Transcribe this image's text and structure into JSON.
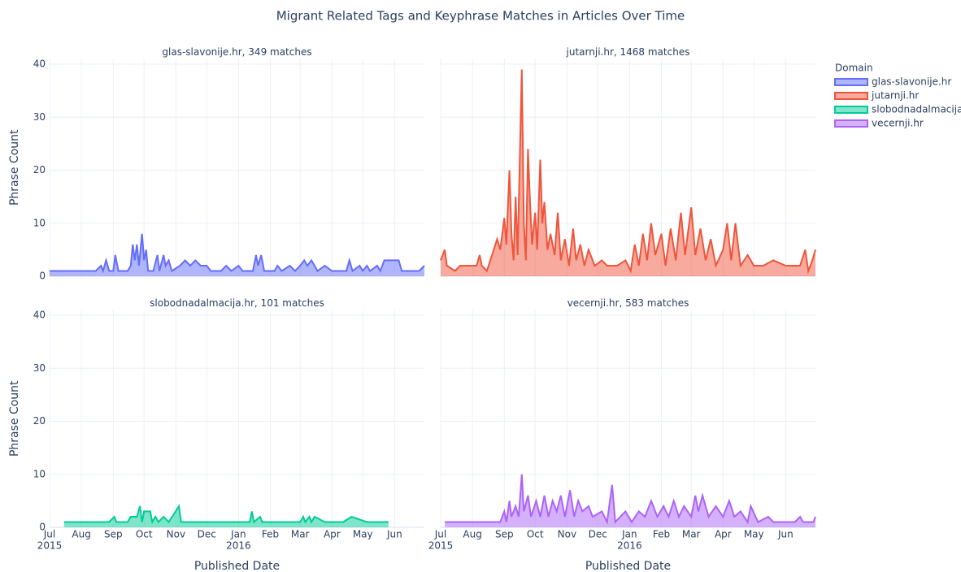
{
  "chart_data": {
    "type": "area",
    "title": "Migrant Related Tags and Keyphrase Matches in Articles Over Time",
    "xlabel": "Published Date",
    "ylabel": "Phrase Count",
    "legend_title": "Domain",
    "ylim": [
      0,
      41
    ],
    "yticks": [
      0,
      10,
      20,
      30,
      40
    ],
    "xlim": [
      "2015-07-01",
      "2016-06-30"
    ],
    "xticks": [
      {
        "value": "2015-07-01",
        "label": "Jul",
        "year": "2015"
      },
      {
        "value": "2015-08-01",
        "label": "Aug"
      },
      {
        "value": "2015-09-01",
        "label": "Sep"
      },
      {
        "value": "2015-10-01",
        "label": "Oct"
      },
      {
        "value": "2015-11-01",
        "label": "Nov"
      },
      {
        "value": "2015-12-01",
        "label": "Dec"
      },
      {
        "value": "2016-01-01",
        "label": "Jan",
        "year": "2016"
      },
      {
        "value": "2016-02-01",
        "label": "Feb"
      },
      {
        "value": "2016-03-01",
        "label": "Mar"
      },
      {
        "value": "2016-04-01",
        "label": "Apr"
      },
      {
        "value": "2016-05-01",
        "label": "May"
      },
      {
        "value": "2016-06-01",
        "label": "Jun"
      }
    ],
    "grid": true,
    "legend": "right",
    "series": [
      {
        "name": "glas-slavonije.hr",
        "subtitle": "glas-slavonije.hr, 349 matches",
        "color": "#636efa",
        "x": [
          "2015-07-01",
          "2015-08-15",
          "2015-08-20",
          "2015-08-22",
          "2015-08-25",
          "2015-08-28",
          "2015-09-01",
          "2015-09-03",
          "2015-09-06",
          "2015-09-15",
          "2015-09-18",
          "2015-09-20",
          "2015-09-22",
          "2015-09-24",
          "2015-09-26",
          "2015-09-29",
          "2015-10-01",
          "2015-10-03",
          "2015-10-05",
          "2015-10-10",
          "2015-10-14",
          "2015-10-16",
          "2015-10-20",
          "2015-10-22",
          "2015-10-25",
          "2015-10-28",
          "2015-11-05",
          "2015-11-10",
          "2015-11-15",
          "2015-11-20",
          "2015-11-25",
          "2015-12-01",
          "2015-12-05",
          "2015-12-15",
          "2015-12-20",
          "2015-12-25",
          "2016-01-01",
          "2016-01-05",
          "2016-01-15",
          "2016-01-18",
          "2016-01-20",
          "2016-01-23",
          "2016-01-26",
          "2016-02-05",
          "2016-02-08",
          "2016-02-12",
          "2016-02-20",
          "2016-02-25",
          "2016-03-01",
          "2016-03-05",
          "2016-03-08",
          "2016-03-12",
          "2016-03-18",
          "2016-03-25",
          "2016-04-01",
          "2016-04-15",
          "2016-04-18",
          "2016-04-21",
          "2016-04-28",
          "2016-05-01",
          "2016-05-05",
          "2016-05-08",
          "2016-05-15",
          "2016-05-18",
          "2016-05-22",
          "2016-06-05",
          "2016-06-08",
          "2016-06-25",
          "2016-06-30"
        ],
        "values": [
          1,
          1,
          2,
          1,
          3,
          1,
          1,
          4,
          1,
          1,
          2,
          6,
          3,
          6,
          2,
          8,
          3,
          5,
          1,
          1,
          4,
          1,
          4,
          2,
          3,
          1,
          2,
          3,
          2,
          3,
          2,
          2,
          1,
          1,
          2,
          1,
          2,
          1,
          1,
          4,
          2,
          4,
          1,
          1,
          2,
          1,
          2,
          1,
          2,
          3,
          2,
          3,
          1,
          2,
          1,
          1,
          3,
          1,
          2,
          1,
          2,
          1,
          2,
          1,
          3,
          3,
          1,
          1,
          2
        ]
      },
      {
        "name": "jutarnji.hr",
        "subtitle": "jutarnji.hr, 1468 matches",
        "color": "#ef553b",
        "x": [
          "2015-07-01",
          "2015-07-05",
          "2015-07-07",
          "2015-07-15",
          "2015-07-20",
          "2015-08-05",
          "2015-08-08",
          "2015-08-10",
          "2015-08-15",
          "2015-08-20",
          "2015-08-25",
          "2015-08-28",
          "2015-09-01",
          "2015-09-03",
          "2015-09-06",
          "2015-09-08",
          "2015-09-10",
          "2015-09-12",
          "2015-09-14",
          "2015-09-18",
          "2015-09-20",
          "2015-09-22",
          "2015-09-24",
          "2015-09-26",
          "2015-09-28",
          "2015-10-01",
          "2015-10-03",
          "2015-10-06",
          "2015-10-08",
          "2015-10-10",
          "2015-10-13",
          "2015-10-16",
          "2015-10-20",
          "2015-10-23",
          "2015-10-26",
          "2015-10-30",
          "2015-11-03",
          "2015-11-07",
          "2015-11-10",
          "2015-11-14",
          "2015-11-18",
          "2015-11-22",
          "2015-11-28",
          "2015-12-05",
          "2015-12-10",
          "2015-12-20",
          "2015-12-28",
          "2016-01-02",
          "2016-01-06",
          "2016-01-10",
          "2016-01-14",
          "2016-01-18",
          "2016-01-22",
          "2016-01-26",
          "2016-02-01",
          "2016-02-05",
          "2016-02-10",
          "2016-02-15",
          "2016-02-20",
          "2016-02-24",
          "2016-03-01",
          "2016-03-05",
          "2016-03-10",
          "2016-03-15",
          "2016-03-20",
          "2016-03-25",
          "2016-04-01",
          "2016-04-05",
          "2016-04-09",
          "2016-04-13",
          "2016-04-18",
          "2016-04-25",
          "2016-05-01",
          "2016-05-10",
          "2016-05-20",
          "2016-06-01",
          "2016-06-15",
          "2016-06-20",
          "2016-06-23",
          "2016-06-27",
          "2016-06-30"
        ],
        "values": [
          3,
          5,
          2,
          1,
          2,
          2,
          4,
          2,
          1,
          4,
          7,
          5,
          11,
          6,
          20,
          8,
          3,
          15,
          4,
          39,
          10,
          3,
          24,
          14,
          6,
          12,
          5,
          22,
          10,
          14,
          5,
          8,
          4,
          12,
          3,
          7,
          2,
          9,
          3,
          6,
          2,
          5,
          2,
          3,
          2,
          2,
          3,
          1,
          6,
          2,
          8,
          3,
          10,
          4,
          8,
          2,
          9,
          3,
          12,
          4,
          13,
          4,
          9,
          3,
          7,
          2,
          5,
          10,
          3,
          10,
          2,
          4,
          2,
          2,
          3,
          2,
          2,
          5,
          1,
          3,
          5
        ]
      },
      {
        "name": "slobodnadalmacija.hr",
        "subtitle": "slobodnadalmacija.hr, 101 matches",
        "color": "#00cc96",
        "x": [
          "2015-07-15",
          "2015-08-28",
          "2015-09-02",
          "2015-09-04",
          "2015-09-15",
          "2015-09-18",
          "2015-09-24",
          "2015-09-27",
          "2015-09-29",
          "2015-10-01",
          "2015-10-07",
          "2015-10-09",
          "2015-10-12",
          "2015-10-15",
          "2015-10-20",
          "2015-10-25",
          "2015-11-04",
          "2015-11-06",
          "2016-01-12",
          "2016-01-14",
          "2016-01-16",
          "2016-01-22",
          "2016-01-24",
          "2016-03-01",
          "2016-03-04",
          "2016-03-06",
          "2016-03-10",
          "2016-03-12",
          "2016-03-15",
          "2016-03-25",
          "2016-04-12",
          "2016-04-20",
          "2016-05-05",
          "2016-05-26"
        ],
        "values": [
          1,
          1,
          2,
          1,
          1,
          2,
          2,
          4,
          1,
          3,
          3,
          1,
          2,
          1,
          2,
          1,
          4,
          1,
          1,
          3,
          1,
          2,
          1,
          1,
          2,
          1,
          2,
          1,
          2,
          1,
          1,
          2,
          1,
          1
        ]
      },
      {
        "name": "vecernji.hr",
        "subtitle": "vecernji.hr, 583 matches",
        "color": "#ab63fa",
        "x": [
          "2015-07-05",
          "2015-08-28",
          "2015-09-01",
          "2015-09-03",
          "2015-09-06",
          "2015-09-08",
          "2015-09-12",
          "2015-09-15",
          "2015-09-18",
          "2015-09-20",
          "2015-09-24",
          "2015-09-27",
          "2015-10-02",
          "2015-10-06",
          "2015-10-10",
          "2015-10-14",
          "2015-10-18",
          "2015-10-22",
          "2015-10-26",
          "2015-10-30",
          "2015-11-04",
          "2015-11-08",
          "2015-11-12",
          "2015-11-16",
          "2015-11-22",
          "2015-11-26",
          "2015-12-05",
          "2015-12-10",
          "2015-12-15",
          "2015-12-18",
          "2015-12-28",
          "2016-01-03",
          "2016-01-10",
          "2016-01-16",
          "2016-01-22",
          "2016-01-28",
          "2016-02-03",
          "2016-02-08",
          "2016-02-13",
          "2016-02-18",
          "2016-02-23",
          "2016-03-01",
          "2016-03-05",
          "2016-03-08",
          "2016-03-12",
          "2016-03-18",
          "2016-03-25",
          "2016-04-01",
          "2016-04-07",
          "2016-04-12",
          "2016-04-18",
          "2016-04-25",
          "2016-04-28",
          "2016-05-05",
          "2016-05-15",
          "2016-05-20",
          "2016-06-10",
          "2016-06-15",
          "2016-06-18",
          "2016-06-28",
          "2016-06-30"
        ],
        "values": [
          1,
          1,
          3,
          1,
          5,
          2,
          4,
          2,
          10,
          3,
          6,
          2,
          5,
          2,
          6,
          2,
          5,
          3,
          6,
          2,
          7,
          2,
          5,
          3,
          4,
          2,
          3,
          1,
          8,
          1,
          3,
          1,
          3,
          2,
          5,
          2,
          4,
          2,
          5,
          2,
          4,
          2,
          6,
          3,
          6,
          2,
          4,
          2,
          5,
          2,
          3,
          1,
          4,
          1,
          2,
          1,
          1,
          2,
          1,
          1,
          2
        ]
      }
    ]
  }
}
